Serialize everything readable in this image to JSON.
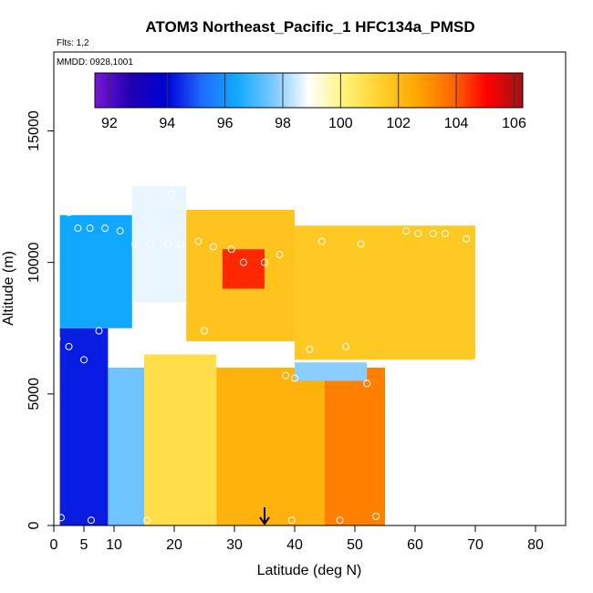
{
  "chart_data": {
    "type": "heatmap",
    "title": "ATOM3 Northeast_Pacific_1 HFC134a_PMSD",
    "annotations": {
      "flights": "Flts: 1,2",
      "dates": "MMDD: 0928,1001"
    },
    "xlabel": "Latitude (deg N)",
    "ylabel": "Altitude (m)",
    "xlim": [
      0,
      85
    ],
    "ylim": [
      0,
      18000
    ],
    "xticks": [
      0,
      5,
      10,
      20,
      30,
      40,
      50,
      60,
      70,
      80
    ],
    "yticks": [
      0,
      5000,
      10000,
      15000
    ],
    "colorbar": {
      "min": 91.5,
      "max": 106.3,
      "ticks": [
        92,
        94,
        96,
        98,
        100,
        102,
        104,
        106
      ],
      "colors": [
        "#7a16d8",
        "#1f00b0",
        "#0000d6",
        "#1f6bff",
        "#10aaff",
        "#7cc8ff",
        "#ffffff",
        "#fff37a",
        "#ffd12c",
        "#ffa800",
        "#ff6a00",
        "#ff0000",
        "#9d1414"
      ]
    },
    "marker": {
      "latitude": 35,
      "label": "arrow"
    },
    "grid": false,
    "legend": "colorbar-top",
    "regions": [
      {
        "lat": [
          1,
          9
        ],
        "alt": [
          0,
          7500
        ],
        "value": 94.3
      },
      {
        "lat": [
          9,
          16
        ],
        "alt": [
          0,
          6000
        ],
        "value": 97.5
      },
      {
        "lat": [
          15,
          27
        ],
        "alt": [
          0,
          6500
        ],
        "value": 100.9
      },
      {
        "lat": [
          27,
          45
        ],
        "alt": [
          0,
          6000
        ],
        "value": 102.3
      },
      {
        "lat": [
          45,
          55
        ],
        "alt": [
          0,
          6000
        ],
        "value": 103.4
      },
      {
        "lat": [
          1,
          13
        ],
        "alt": [
          7500,
          11800
        ],
        "value": 96.4
      },
      {
        "lat": [
          13,
          22
        ],
        "alt": [
          8500,
          12900
        ],
        "value": 98.7
      },
      {
        "lat": [
          22,
          40
        ],
        "alt": [
          7000,
          12000
        ],
        "value": 101.8
      },
      {
        "lat": [
          28,
          35
        ],
        "alt": [
          9000,
          10500
        ],
        "value": 104.6
      },
      {
        "lat": [
          40,
          70
        ],
        "alt": [
          6300,
          11400
        ],
        "value": 101.6
      },
      {
        "lat": [
          40,
          52
        ],
        "alt": [
          5500,
          6200
        ],
        "value": 97.8
      }
    ],
    "sample_points": [
      {
        "lat": 1.2,
        "alt": 300
      },
      {
        "lat": 6.2,
        "alt": 200
      },
      {
        "lat": 15.5,
        "alt": 200
      },
      {
        "lat": 39.5,
        "alt": 200
      },
      {
        "lat": 47.5,
        "alt": 200
      },
      {
        "lat": 53.5,
        "alt": 350
      },
      {
        "lat": 0.5,
        "alt": 7100
      },
      {
        "lat": 2.5,
        "alt": 6800
      },
      {
        "lat": 5,
        "alt": 6300
      },
      {
        "lat": 7.5,
        "alt": 7400
      },
      {
        "lat": 14,
        "alt": 6500
      },
      {
        "lat": 17,
        "alt": 7400
      },
      {
        "lat": 25,
        "alt": 7400
      },
      {
        "lat": 38.5,
        "alt": 5700
      },
      {
        "lat": 40,
        "alt": 5600
      },
      {
        "lat": 42.5,
        "alt": 6700
      },
      {
        "lat": 48.5,
        "alt": 6800
      },
      {
        "lat": 52,
        "alt": 5400
      },
      {
        "lat": 55.5,
        "alt": 6100
      },
      {
        "lat": 70,
        "alt": 6200
      },
      {
        "lat": 2.5,
        "alt": 11900
      },
      {
        "lat": 4,
        "alt": 11300
      },
      {
        "lat": 6,
        "alt": 11300
      },
      {
        "lat": 8.5,
        "alt": 11300
      },
      {
        "lat": 11,
        "alt": 11200
      },
      {
        "lat": 13.5,
        "alt": 10700
      },
      {
        "lat": 16,
        "alt": 10700
      },
      {
        "lat": 19,
        "alt": 10700
      },
      {
        "lat": 21,
        "alt": 10700
      },
      {
        "lat": 24,
        "alt": 10800
      },
      {
        "lat": 26.5,
        "alt": 10600
      },
      {
        "lat": 29.5,
        "alt": 10500
      },
      {
        "lat": 31.5,
        "alt": 10000
      },
      {
        "lat": 35,
        "alt": 10000
      },
      {
        "lat": 37.5,
        "alt": 10300
      },
      {
        "lat": 44.5,
        "alt": 10800
      },
      {
        "lat": 51,
        "alt": 10700
      },
      {
        "lat": 58.5,
        "alt": 11200
      },
      {
        "lat": 60.5,
        "alt": 11100
      },
      {
        "lat": 63,
        "alt": 11100
      },
      {
        "lat": 65,
        "alt": 11100
      },
      {
        "lat": 68.5,
        "alt": 10900
      },
      {
        "lat": 19.5,
        "alt": 12600
      },
      {
        "lat": 26.5,
        "alt": 12700
      },
      {
        "lat": 29.5,
        "alt": 12400
      }
    ]
  }
}
